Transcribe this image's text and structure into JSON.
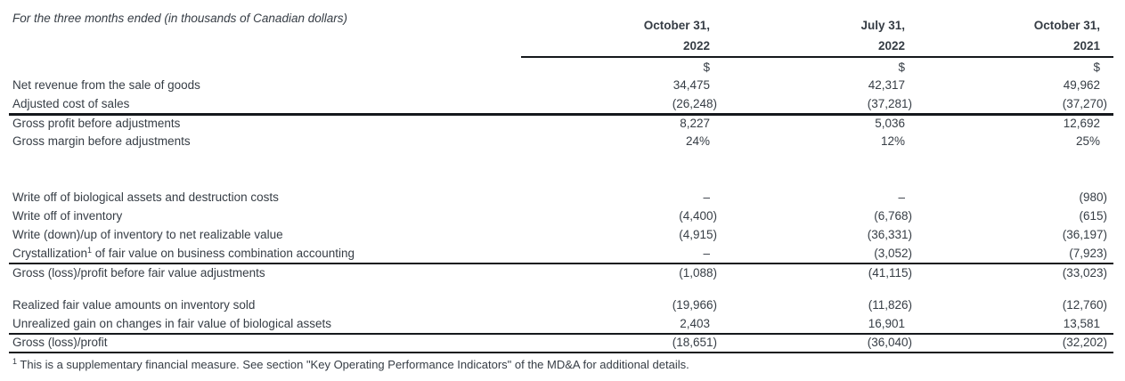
{
  "colors": {
    "text": "#363d45",
    "rule": "#15181c",
    "background": "#ffffff"
  },
  "table": {
    "caption": "For the three months ended (in thousands of Canadian dollars)",
    "columns": [
      {
        "date_line": "October 31,",
        "year_line": "2022",
        "unit": "$"
      },
      {
        "date_line": "July 31,",
        "year_line": "2022",
        "unit": "$"
      },
      {
        "date_line": "October 31,",
        "year_line": "2021",
        "unit": "$"
      }
    ],
    "rows": [
      {
        "label": "Net revenue from the sale of goods",
        "values": [
          "34,475",
          "42,317",
          "49,962"
        ]
      },
      {
        "label": "Adjusted cost of sales",
        "values": [
          "(26,248)",
          "(37,281)",
          "(37,270)"
        ],
        "border": "thick"
      },
      {
        "label": "Gross profit before adjustments",
        "values": [
          "8,227",
          "5,036",
          "12,692"
        ]
      },
      {
        "label": "Gross margin before adjustments",
        "values": [
          "24%",
          "12%",
          "25%"
        ]
      },
      {
        "spacer": 42
      },
      {
        "label": "Write off of biological assets and destruction costs",
        "values": [
          "–",
          "–",
          "(980)"
        ]
      },
      {
        "label": "Write off of inventory",
        "values": [
          "(4,400)",
          "(6,768)",
          "(615)"
        ]
      },
      {
        "label": "Write (down)/up of inventory to net realizable value",
        "values": [
          "(4,915)",
          "(36,331)",
          "(36,197)"
        ]
      },
      {
        "label": "Crystallization",
        "label_sup": "1",
        "label_post": " of fair value on business combination accounting",
        "values": [
          "–",
          "(3,052)",
          "(7,923)"
        ],
        "border": "thin"
      },
      {
        "label": "Gross (loss)/profit before fair value adjustments",
        "values": [
          "(1,088)",
          "(41,115)",
          "(33,023)"
        ]
      },
      {
        "spacer": 16
      },
      {
        "label": "Realized fair value amounts on inventory sold",
        "values": [
          "(19,966)",
          "(11,826)",
          "(12,760)"
        ]
      },
      {
        "label": "Unrealized gain on changes in fair value of biological assets",
        "values": [
          "2,403",
          "16,901",
          "13,581"
        ],
        "border": "thin"
      },
      {
        "label": "Gross (loss)/profit",
        "values": [
          "(18,651)",
          "(36,040)",
          "(32,202)"
        ],
        "border": "thin"
      }
    ],
    "footnote_sup": "1",
    "footnote_text": " This is a supplementary financial measure. See section \"Key Operating Performance Indicators\" of the MD&A for additional details."
  }
}
